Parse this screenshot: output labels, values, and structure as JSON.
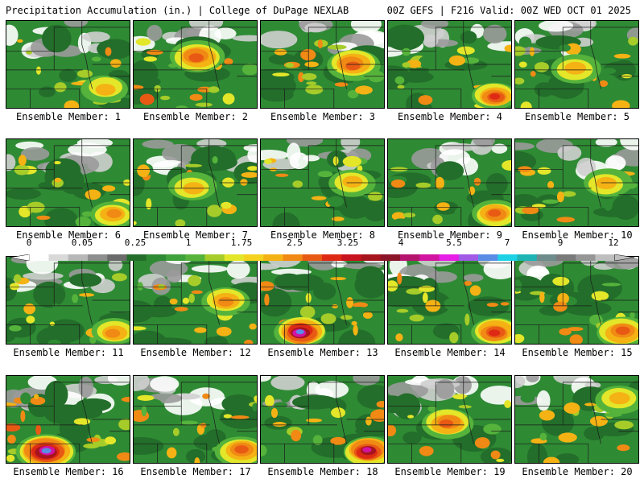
{
  "header": {
    "left": "Precipitation Accumulation (in.) | College of DuPage NEXLAB",
    "right": "00Z GEFS | F216 Valid: 00Z WED OCT 01 2025"
  },
  "members": [
    {
      "label": "Ensemble Member: 1",
      "intensity": 0.45,
      "hotspot": "east-south",
      "peak": 2.0
    },
    {
      "label": "Ensemble Member: 2",
      "intensity": 0.7,
      "hotspot": "center-north",
      "peak": 3.0
    },
    {
      "label": "Ensemble Member: 3",
      "intensity": 0.65,
      "hotspot": "east",
      "peak": 3.0
    },
    {
      "label": "Ensemble Member: 4",
      "intensity": 0.4,
      "hotspot": "southeast",
      "peak": 3.25
    },
    {
      "label": "Ensemble Member: 5",
      "intensity": 0.55,
      "hotspot": "center",
      "peak": 1.75
    },
    {
      "label": "Ensemble Member: 6",
      "intensity": 0.4,
      "hotspot": "southeast",
      "peak": 2.5
    },
    {
      "label": "Ensemble Member: 7",
      "intensity": 0.5,
      "hotspot": "center",
      "peak": 2.0
    },
    {
      "label": "Ensemble Member: 8",
      "intensity": 0.45,
      "hotspot": "east",
      "peak": 1.75
    },
    {
      "label": "Ensemble Member: 9",
      "intensity": 0.45,
      "hotspot": "southeast",
      "peak": 3.0
    },
    {
      "label": "Ensemble Member: 10",
      "intensity": 0.5,
      "hotspot": "east",
      "peak": 1.75
    },
    {
      "label": "Ensemble Member: 11",
      "intensity": 0.4,
      "hotspot": "southeast",
      "peak": 2.5
    },
    {
      "label": "Ensemble Member: 12",
      "intensity": 0.5,
      "hotspot": "east",
      "peak": 2.5
    },
    {
      "label": "Ensemble Member: 13",
      "intensity": 0.6,
      "hotspot": "southwest",
      "peak": 7.0
    },
    {
      "label": "Ensemble Member: 14",
      "intensity": 0.55,
      "hotspot": "southeast",
      "peak": 3.25
    },
    {
      "label": "Ensemble Member: 15",
      "intensity": 0.65,
      "hotspot": "southeast",
      "peak": 3.0
    },
    {
      "label": "Ensemble Member: 16",
      "intensity": 0.85,
      "hotspot": "southwest",
      "peak": 7.0
    },
    {
      "label": "Ensemble Member: 17",
      "intensity": 0.6,
      "hotspot": "southeast",
      "peak": 3.0
    },
    {
      "label": "Ensemble Member: 18",
      "intensity": 0.6,
      "hotspot": "southeast",
      "peak": 5.5
    },
    {
      "label": "Ensemble Member: 19",
      "intensity": 0.6,
      "hotspot": "center",
      "peak": 3.0
    },
    {
      "label": "Ensemble Member: 20",
      "intensity": 0.5,
      "hotspot": "northeast",
      "peak": 1.75
    }
  ],
  "colorbar": {
    "tick_labels": [
      "0",
      "0.05",
      "0.25",
      "1",
      "1.75",
      "2.5",
      "3.25",
      "4",
      "5.5",
      "7",
      "9",
      "12"
    ],
    "colors": [
      "#ffffff",
      "#d9d9d9",
      "#b7b7b7",
      "#8e8e8e",
      "#6b6b6b",
      "#236e2a",
      "#2f8a34",
      "#3ea13b",
      "#55b33c",
      "#a6cc29",
      "#e3e629",
      "#f5d21e",
      "#f5b214",
      "#f08a14",
      "#e85a14",
      "#de2a14",
      "#c8141e",
      "#a6141e",
      "#8a1428",
      "#b4146e",
      "#d214a0",
      "#e61ee6",
      "#a05ae6",
      "#5a8ce6",
      "#1ed2e6",
      "#1eb4b4",
      "#6e8c8c",
      "#7a7a7a",
      "#969696",
      "#bebebe"
    ]
  }
}
